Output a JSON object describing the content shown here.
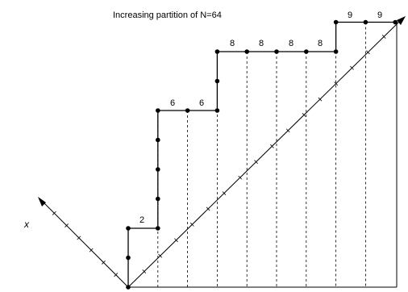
{
  "diagram": {
    "title": "Increasing partition of N=64",
    "axis_label": "x",
    "total": 64,
    "parts": [
      2,
      6,
      6,
      8,
      8,
      8,
      8,
      9,
      9
    ]
  }
}
